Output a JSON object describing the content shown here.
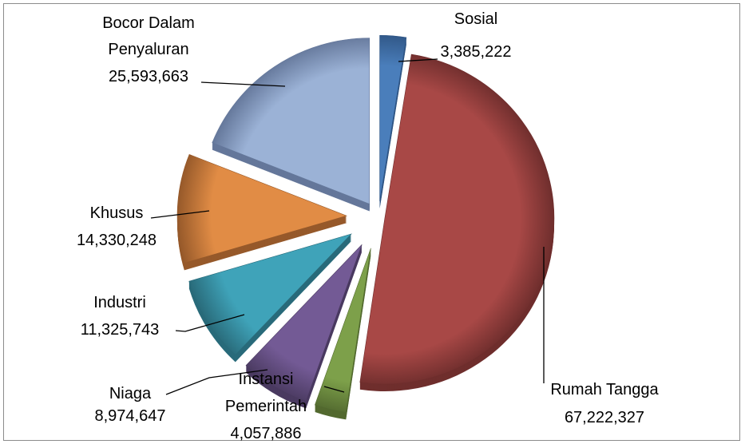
{
  "chart_data": {
    "type": "pie",
    "style": "exploded 3d pie",
    "legend": "none",
    "slices": [
      {
        "label_lines": [
          "Sosial"
        ],
        "value_text": "3,385,222",
        "value": 3385222,
        "color": "#4a7ebb",
        "dark": "#2f5584"
      },
      {
        "label_lines": [
          "Rumah Tangga"
        ],
        "value_text": "67,222,327",
        "value": 67222327,
        "color": "#a84846",
        "dark": "#6f2e2d"
      },
      {
        "label_lines": [
          "Instansi",
          "Pemerintah"
        ],
        "value_text": "4,057,886",
        "value": 4057886,
        "color": "#7da04a",
        "dark": "#52692f"
      },
      {
        "label_lines": [
          "Niaga"
        ],
        "value_text": "8,974,647",
        "value": 8974647,
        "color": "#735a95",
        "dark": "#4a3a60"
      },
      {
        "label_lines": [
          "Industri"
        ],
        "value_text": "11,325,743",
        "value": 11325743,
        "color": "#3fa3b9",
        "dark": "#296b7a"
      },
      {
        "label_lines": [
          "Khusus"
        ],
        "value_text": "14,330,248",
        "value": 14330248,
        "color": "#e18c45",
        "dark": "#96592a"
      },
      {
        "label_lines": [
          "Bocor Dalam",
          "Penyaluran"
        ],
        "value_text": "25,593,663",
        "value": 25593663,
        "color": "#9bb2d6",
        "dark": "#64779a"
      }
    ]
  }
}
